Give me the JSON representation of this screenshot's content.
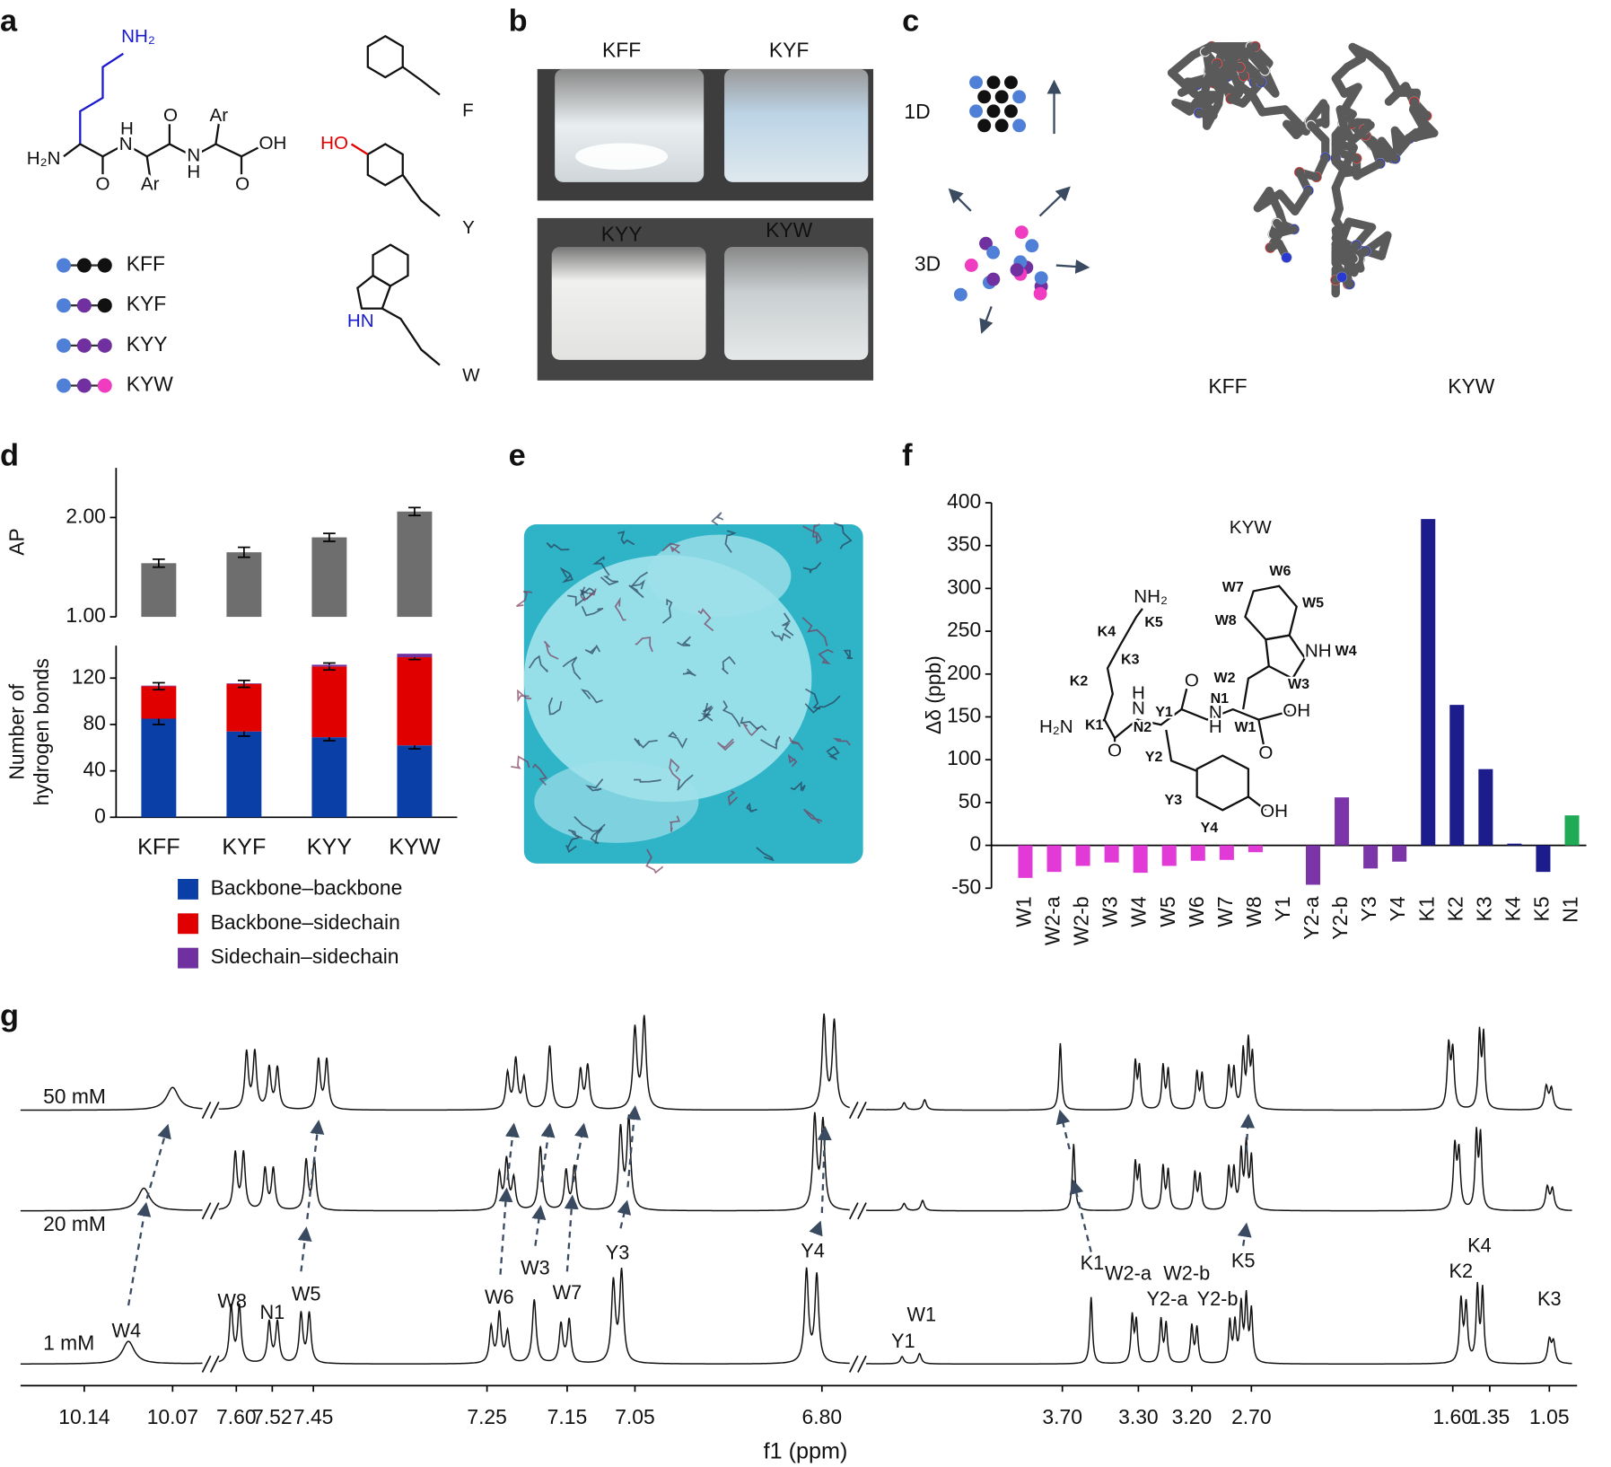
{
  "panel_labels": [
    "a",
    "b",
    "c",
    "d",
    "e",
    "f",
    "g"
  ],
  "panel_a": {
    "backbone": [
      "NH₂",
      "H₂N",
      "H",
      "N",
      "O",
      "Ar",
      "O",
      "Ar",
      "N",
      "H",
      "O",
      "OH"
    ],
    "peptides": [
      "KFF",
      "KYF",
      "KYY",
      "KYW"
    ],
    "side_chains": [
      "F",
      "HO",
      "Y",
      "HN",
      "W"
    ]
  },
  "panel_b": {
    "labels": [
      "KFF",
      "KYF",
      "KYY",
      "KYW"
    ]
  },
  "panel_c": {
    "labels": [
      "1D",
      "3D",
      "KFF",
      "KYW"
    ]
  },
  "chart_data": [
    {
      "type": "bar",
      "ylabel": "AP",
      "values": [
        1.54,
        1.65,
        1.8,
        2.06
      ],
      "errors": [
        0.04,
        0.05,
        0.04,
        0.04
      ],
      "color": "#6e6e6e",
      "ylim": [
        1.0,
        2.5
      ],
      "yticks": [
        {
          "value": 1,
          "label": "1.00"
        },
        {
          "value": 2,
          "label": "2.00"
        }
      ]
    },
    {
      "type": "stacked_bar",
      "ylabel_lines": [
        "Number of",
        "hydrogen bonds"
      ],
      "categories": [
        "KFF",
        "KYF",
        "KYY",
        "KYW"
      ],
      "series": [
        {
          "name": "Backbone–backbone",
          "color": "#0a3fa8",
          "values": [
            85,
            74,
            69,
            62
          ],
          "errors": [
            5,
            4,
            3,
            3
          ]
        },
        {
          "name": "Backbone–sidechain",
          "color": "#e00000",
          "values": [
            28,
            41,
            61,
            76
          ],
          "errors": [
            3,
            3,
            3,
            2
          ]
        },
        {
          "name": "Sidechain–sidechain",
          "color": "#7030a0",
          "values": [
            0.5,
            0.5,
            1.5,
            3
          ]
        }
      ],
      "ylim": [
        0,
        148
      ],
      "yticks": [
        0,
        40,
        80,
        120
      ]
    },
    {
      "type": "bar",
      "ylabel": "Δδ (ppb)",
      "categories": [
        "W1",
        "W2-a",
        "W2-b",
        "W3",
        "W4",
        "W5",
        "W6",
        "W7",
        "W8",
        "Y1",
        "Y2-a",
        "Y2-b",
        "Y3",
        "Y4",
        "K1",
        "K2",
        "K3",
        "K4",
        "K5",
        "N1"
      ],
      "values": [
        -38,
        -31,
        -24,
        -20,
        -32,
        -24,
        -18,
        -17,
        -8,
        0,
        -46,
        56,
        -27,
        -19,
        381,
        164,
        89,
        2,
        -31,
        35
      ],
      "colors": [
        "#e23ad6",
        "#e23ad6",
        "#e23ad6",
        "#e23ad6",
        "#e23ad6",
        "#e23ad6",
        "#e23ad6",
        "#e23ad6",
        "#e23ad6",
        "#7b35a8",
        "#7b35a8",
        "#7b35a8",
        "#7b35a8",
        "#7b35a8",
        "#1c1c8c",
        "#1c1c8c",
        "#1c1c8c",
        "#1c1c8c",
        "#1c1c8c",
        "#1faa55"
      ],
      "ylim": [
        -50,
        400
      ],
      "yticks": [
        -50,
        0,
        50,
        100,
        150,
        200,
        250,
        300,
        350,
        400
      ],
      "annotations": [
        {
          "text": "KYW",
          "color": "#222222"
        },
        {
          "text": "NH₂",
          "color": "#000000"
        },
        {
          "text": "K5",
          "color": "#1a1ad0"
        },
        {
          "text": "K4",
          "color": "#1a1ad0"
        },
        {
          "text": "K3",
          "color": "#1a1ad0"
        },
        {
          "text": "K2",
          "color": "#1a1ad0"
        },
        {
          "text": "H₂N",
          "color": "#000000"
        },
        {
          "text": "K1",
          "color": "#1a1ad0"
        },
        {
          "text": "N2",
          "color": "#1faa55"
        },
        {
          "text": "H",
          "color": "#000000"
        },
        {
          "text": "N",
          "color": "#000000"
        },
        {
          "text": "Y1",
          "color": "#8a2be2"
        },
        {
          "text": "O",
          "color": "#000000"
        },
        {
          "text": "N1",
          "color": "#1faa55"
        },
        {
          "text": "N",
          "color": "#000000"
        },
        {
          "text": "H",
          "color": "#000000"
        },
        {
          "text": "W1",
          "color": "#e020d0"
        },
        {
          "text": "OH",
          "color": "#000000"
        },
        {
          "text": "O",
          "color": "#000000"
        },
        {
          "text": "O",
          "color": "#000000"
        },
        {
          "text": "Y2",
          "color": "#8a2be2"
        },
        {
          "text": "Y3",
          "color": "#8a2be2"
        },
        {
          "text": "OH",
          "color": "#000000"
        },
        {
          "text": "Y4",
          "color": "#8a2be2"
        },
        {
          "text": "W2",
          "color": "#e020d0"
        },
        {
          "text": "W3",
          "color": "#e020d0"
        },
        {
          "text": "NH",
          "color": "#000000"
        },
        {
          "text": "W4",
          "color": "#e020d0"
        },
        {
          "text": "W5",
          "color": "#e020d0"
        },
        {
          "text": "W6",
          "color": "#e020d0"
        },
        {
          "text": "W7",
          "color": "#e020d0"
        },
        {
          "text": "W8",
          "color": "#e020d0"
        }
      ]
    }
  ],
  "panel_g": {
    "concentrations": [
      "50 mM",
      "20 mM",
      "1 mM"
    ],
    "tick_labels": [
      "10.14",
      "10.07",
      "7.60",
      "7.52",
      "7.45",
      "7.25",
      "7.15",
      "7.05",
      "6.80",
      "3.70",
      "3.30",
      "3.20",
      "2.70",
      "1.60",
      "1.35",
      "1.05"
    ],
    "xlabel": "f1 (ppm)",
    "peak_labels": [
      {
        "text": "W4",
        "color": "#e060d0"
      },
      {
        "text": "W8",
        "color": "#e060d0"
      },
      {
        "text": "N1",
        "color": "#1faa55"
      },
      {
        "text": "W5",
        "color": "#e060d0"
      },
      {
        "text": "W6",
        "color": "#e060d0"
      },
      {
        "text": "W3",
        "color": "#e060d0"
      },
      {
        "text": "W7",
        "color": "#e060d0"
      },
      {
        "text": "Y3",
        "color": "#8a2be2"
      },
      {
        "text": "Y4",
        "color": "#8a2be2"
      },
      {
        "text": "W1",
        "color": "#e060d0"
      },
      {
        "text": "Y1",
        "color": "#8a2be2"
      },
      {
        "text": "K1",
        "color": "#2020c0"
      },
      {
        "text": "W2-a",
        "color": "#e060d0"
      },
      {
        "text": "W2-b",
        "color": "#e060d0"
      },
      {
        "text": "Y2-a",
        "color": "#8a2be2"
      },
      {
        "text": "Y2-b",
        "color": "#8a2be2"
      },
      {
        "text": "K5",
        "color": "#2020c0"
      },
      {
        "text": "K2",
        "color": "#2020c0"
      },
      {
        "text": "K4",
        "color": "#2020c0"
      },
      {
        "text": "K3",
        "color": "#2020c0"
      }
    ]
  }
}
